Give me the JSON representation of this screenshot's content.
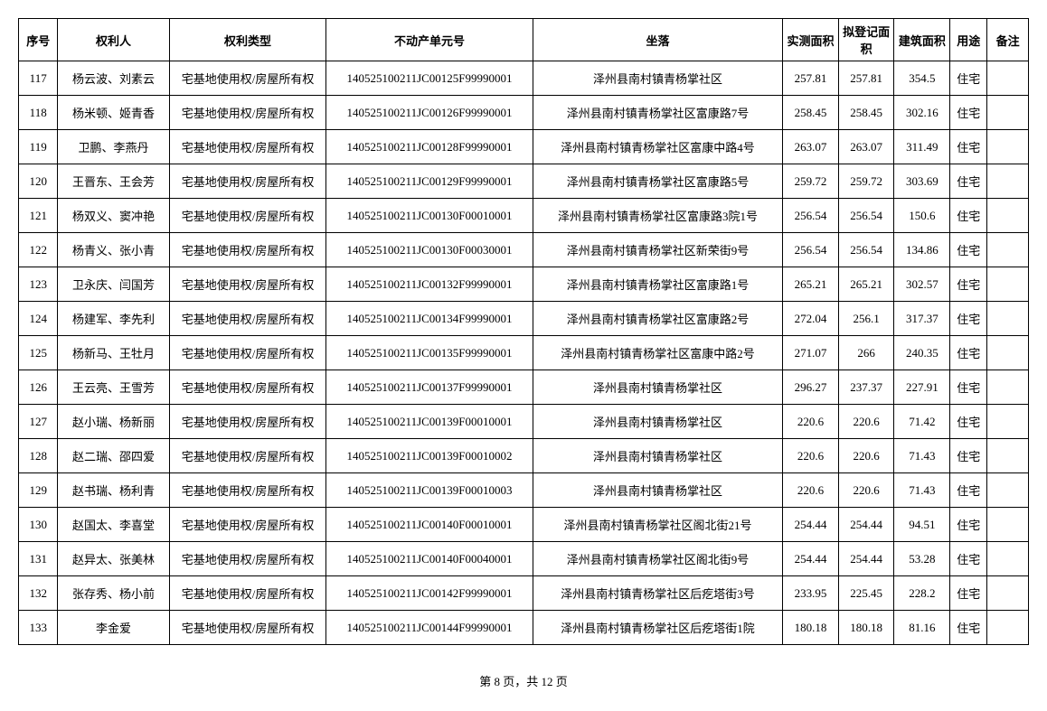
{
  "columns": [
    "序号",
    "权利人",
    "权利类型",
    "不动产单元号",
    "坐落",
    "实测面积",
    "拟登记面积",
    "建筑面积",
    "用途",
    "备注"
  ],
  "rows": [
    {
      "seq": "117",
      "owner": "杨云波、刘素云",
      "right": "宅基地使用权/房屋所有权",
      "unit": "140525100211JC00125F99990001",
      "loc": "泽州县南村镇青杨掌社区",
      "a1": "257.81",
      "a2": "257.81",
      "a3": "354.5",
      "usage": "住宅",
      "remark": ""
    },
    {
      "seq": "118",
      "owner": "杨米顿、姬青香",
      "right": "宅基地使用权/房屋所有权",
      "unit": "140525100211JC00126F99990001",
      "loc": "泽州县南村镇青杨掌社区富康路7号",
      "a1": "258.45",
      "a2": "258.45",
      "a3": "302.16",
      "usage": "住宅",
      "remark": ""
    },
    {
      "seq": "119",
      "owner": "卫鹏、李燕丹",
      "right": "宅基地使用权/房屋所有权",
      "unit": "140525100211JC00128F99990001",
      "loc": "泽州县南村镇青杨掌社区富康中路4号",
      "a1": "263.07",
      "a2": "263.07",
      "a3": "311.49",
      "usage": "住宅",
      "remark": ""
    },
    {
      "seq": "120",
      "owner": "王晋东、王会芳",
      "right": "宅基地使用权/房屋所有权",
      "unit": "140525100211JC00129F99990001",
      "loc": "泽州县南村镇青杨掌社区富康路5号",
      "a1": "259.72",
      "a2": "259.72",
      "a3": "303.69",
      "usage": "住宅",
      "remark": ""
    },
    {
      "seq": "121",
      "owner": "杨双义、窦冲艳",
      "right": "宅基地使用权/房屋所有权",
      "unit": "140525100211JC00130F00010001",
      "loc": "泽州县南村镇青杨掌社区富康路3院1号",
      "a1": "256.54",
      "a2": "256.54",
      "a3": "150.6",
      "usage": "住宅",
      "remark": ""
    },
    {
      "seq": "122",
      "owner": "杨青义、张小青",
      "right": "宅基地使用权/房屋所有权",
      "unit": "140525100211JC00130F00030001",
      "loc": "泽州县南村镇青杨掌社区新荣街9号",
      "a1": "256.54",
      "a2": "256.54",
      "a3": "134.86",
      "usage": "住宅",
      "remark": ""
    },
    {
      "seq": "123",
      "owner": "卫永庆、闫国芳",
      "right": "宅基地使用权/房屋所有权",
      "unit": "140525100211JC00132F99990001",
      "loc": "泽州县南村镇青杨掌社区富康路1号",
      "a1": "265.21",
      "a2": "265.21",
      "a3": "302.57",
      "usage": "住宅",
      "remark": ""
    },
    {
      "seq": "124",
      "owner": "杨建军、李先利",
      "right": "宅基地使用权/房屋所有权",
      "unit": "140525100211JC00134F99990001",
      "loc": "泽州县南村镇青杨掌社区富康路2号",
      "a1": "272.04",
      "a2": "256.1",
      "a3": "317.37",
      "usage": "住宅",
      "remark": ""
    },
    {
      "seq": "125",
      "owner": "杨新马、王牡月",
      "right": "宅基地使用权/房屋所有权",
      "unit": "140525100211JC00135F99990001",
      "loc": "泽州县南村镇青杨掌社区富康中路2号",
      "a1": "271.07",
      "a2": "266",
      "a3": "240.35",
      "usage": "住宅",
      "remark": ""
    },
    {
      "seq": "126",
      "owner": "王云亮、王雪芳",
      "right": "宅基地使用权/房屋所有权",
      "unit": "140525100211JC00137F99990001",
      "loc": "泽州县南村镇青杨掌社区",
      "a1": "296.27",
      "a2": "237.37",
      "a3": "227.91",
      "usage": "住宅",
      "remark": ""
    },
    {
      "seq": "127",
      "owner": "赵小瑞、杨新丽",
      "right": "宅基地使用权/房屋所有权",
      "unit": "140525100211JC00139F00010001",
      "loc": "泽州县南村镇青杨掌社区",
      "a1": "220.6",
      "a2": "220.6",
      "a3": "71.42",
      "usage": "住宅",
      "remark": ""
    },
    {
      "seq": "128",
      "owner": "赵二瑞、邵四爱",
      "right": "宅基地使用权/房屋所有权",
      "unit": "140525100211JC00139F00010002",
      "loc": "泽州县南村镇青杨掌社区",
      "a1": "220.6",
      "a2": "220.6",
      "a3": "71.43",
      "usage": "住宅",
      "remark": ""
    },
    {
      "seq": "129",
      "owner": "赵书瑞、杨利青",
      "right": "宅基地使用权/房屋所有权",
      "unit": "140525100211JC00139F00010003",
      "loc": "泽州县南村镇青杨掌社区",
      "a1": "220.6",
      "a2": "220.6",
      "a3": "71.43",
      "usage": "住宅",
      "remark": ""
    },
    {
      "seq": "130",
      "owner": "赵国太、李喜堂",
      "right": "宅基地使用权/房屋所有权",
      "unit": "140525100211JC00140F00010001",
      "loc": "泽州县南村镇青杨掌社区阁北街21号",
      "a1": "254.44",
      "a2": "254.44",
      "a3": "94.51",
      "usage": "住宅",
      "remark": ""
    },
    {
      "seq": "131",
      "owner": "赵异太、张美林",
      "right": "宅基地使用权/房屋所有权",
      "unit": "140525100211JC00140F00040001",
      "loc": "泽州县南村镇青杨掌社区阁北街9号",
      "a1": "254.44",
      "a2": "254.44",
      "a3": "53.28",
      "usage": "住宅",
      "remark": ""
    },
    {
      "seq": "132",
      "owner": "张存秀、杨小前",
      "right": "宅基地使用权/房屋所有权",
      "unit": "140525100211JC00142F99990001",
      "loc": "泽州县南村镇青杨掌社区后疙塔街3号",
      "a1": "233.95",
      "a2": "225.45",
      "a3": "228.2",
      "usage": "住宅",
      "remark": ""
    },
    {
      "seq": "133",
      "owner": "李金爱",
      "right": "宅基地使用权/房屋所有权",
      "unit": "140525100211JC00144F99990001",
      "loc": "泽州县南村镇青杨掌社区后疙塔街1院",
      "a1": "180.18",
      "a2": "180.18",
      "a3": "81.16",
      "usage": "住宅",
      "remark": ""
    }
  ],
  "footer": "第 8 页，共 12 页"
}
